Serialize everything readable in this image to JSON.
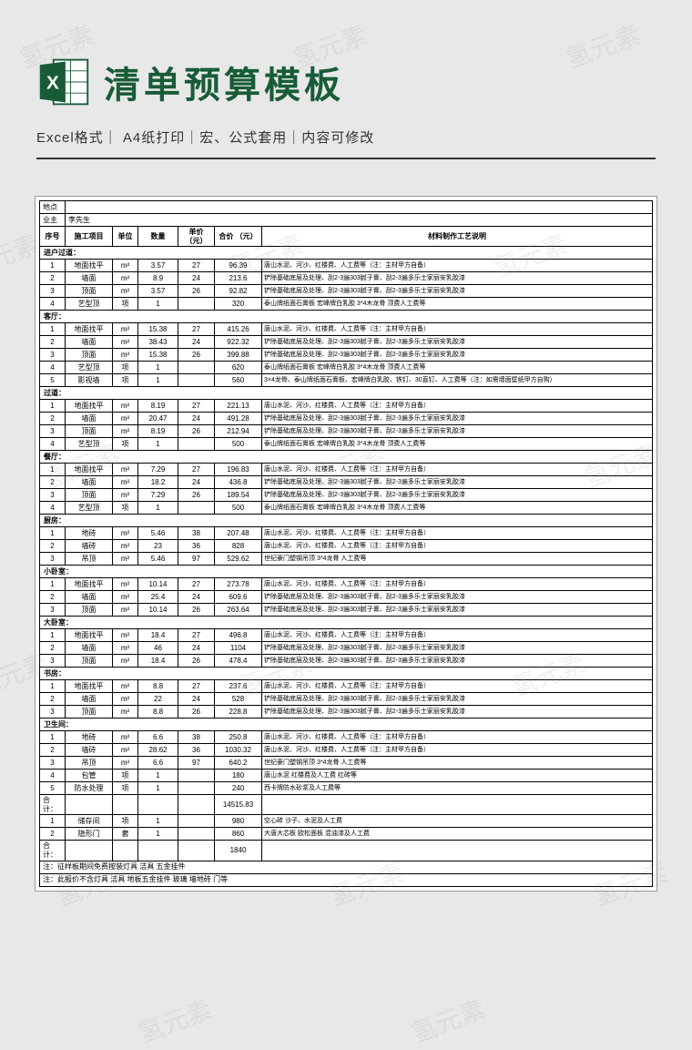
{
  "header": {
    "title": "清单预算模板",
    "subtitle": "Excel格式｜ A4纸打印｜宏、公式套用｜内容可修改"
  },
  "meta": {
    "location_label": "地点",
    "owner_label": "业主",
    "owner_value": "李先生"
  },
  "columns": {
    "seq": "序号",
    "item": "施工项目",
    "unit": "单位",
    "qty": "数量",
    "price": "单价\n（元）",
    "total": "合价\n（元）",
    "desc": "材料制作工艺说明"
  },
  "desc_text": {
    "floor": "唐山水泥、河沙、红楼费、人工费等（注：主材甲方自备）",
    "wall": "铲除基础底层及处理、刮2-3遍303腻子膏、刮2-3遍多乐士家丽安乳胶漆",
    "ceil": "铲除基础底层及处理、刮2-3遍303腻子膏、刮2-3遍多乐士家丽安乳胶漆",
    "art": "泰山牌纸面石膏板 宏峰牌白乳胶 3*4木龙骨 顶费人工费等",
    "tvwall": "3×4龙骨、泰山牌纸面石膏板、宏峰牌白乳胶、铁钉、30直钉、人工费等（注：如需墙面壁纸甲方自购）",
    "tile": "唐山水泥、河沙、红楼费、人工费等（注：主材甲方自备）",
    "susp": "世纪豪门塑钢吊顶 3*4龙骨 人工费等",
    "pipe": "唐山水泥 红楼费及人工费 红砖等",
    "water": "西卡牌防水砂浆及人工费等",
    "store": "空心砖 沙子、水泥及人工费",
    "door": "大唐大芯板 欧松面板 混油漆及人工费"
  },
  "sections": [
    {
      "name": "进户过道：",
      "rows": [
        {
          "n": 1,
          "i": "地面找平",
          "u": "m²",
          "q": "3.57",
          "p": "27",
          "t": "96.39",
          "d": "floor"
        },
        {
          "n": 2,
          "i": "墙面",
          "u": "m²",
          "q": "8.9",
          "p": "24",
          "t": "213.6",
          "d": "wall"
        },
        {
          "n": 3,
          "i": "顶面",
          "u": "m²",
          "q": "3.57",
          "p": "26",
          "t": "92.82",
          "d": "ceil"
        },
        {
          "n": 4,
          "i": "艺型顶",
          "u": "项",
          "q": "1",
          "p": "",
          "t": "320",
          "d": "art"
        }
      ]
    },
    {
      "name": "客厅：",
      "rows": [
        {
          "n": 1,
          "i": "地面找平",
          "u": "m²",
          "q": "15.38",
          "p": "27",
          "t": "415.26",
          "d": "floor"
        },
        {
          "n": 2,
          "i": "墙面",
          "u": "m²",
          "q": "38.43",
          "p": "24",
          "t": "922.32",
          "d": "wall"
        },
        {
          "n": 3,
          "i": "顶面",
          "u": "m²",
          "q": "15.38",
          "p": "26",
          "t": "399.88",
          "d": "ceil"
        },
        {
          "n": 4,
          "i": "艺型顶",
          "u": "项",
          "q": "1",
          "p": "",
          "t": "620",
          "d": "art"
        },
        {
          "n": 5,
          "i": "影视墙",
          "u": "项",
          "q": "1",
          "p": "",
          "t": "560",
          "d": "tvwall"
        }
      ]
    },
    {
      "name": "过道：",
      "rows": [
        {
          "n": 1,
          "i": "地面找平",
          "u": "m²",
          "q": "8.19",
          "p": "27",
          "t": "221.13",
          "d": "floor"
        },
        {
          "n": 2,
          "i": "墙面",
          "u": "m²",
          "q": "20.47",
          "p": "24",
          "t": "491.28",
          "d": "wall"
        },
        {
          "n": 3,
          "i": "顶面",
          "u": "m²",
          "q": "8.19",
          "p": "26",
          "t": "212.94",
          "d": "ceil"
        },
        {
          "n": 4,
          "i": "艺型顶",
          "u": "项",
          "q": "1",
          "p": "",
          "t": "500",
          "d": "art"
        }
      ]
    },
    {
      "name": "餐厅：",
      "rows": [
        {
          "n": 1,
          "i": "地面找平",
          "u": "m²",
          "q": "7.29",
          "p": "27",
          "t": "196.83",
          "d": "floor"
        },
        {
          "n": 2,
          "i": "墙面",
          "u": "m²",
          "q": "18.2",
          "p": "24",
          "t": "436.8",
          "d": "wall"
        },
        {
          "n": 3,
          "i": "顶面",
          "u": "m²",
          "q": "7.29",
          "p": "26",
          "t": "189.54",
          "d": "ceil"
        },
        {
          "n": 4,
          "i": "艺型顶",
          "u": "项",
          "q": "1",
          "p": "",
          "t": "500",
          "d": "art"
        }
      ]
    },
    {
      "name": "厨房：",
      "rows": [
        {
          "n": 1,
          "i": "地砖",
          "u": "m²",
          "q": "5.46",
          "p": "38",
          "t": "207.48",
          "d": "tile"
        },
        {
          "n": 2,
          "i": "墙砖",
          "u": "m²",
          "q": "23",
          "p": "36",
          "t": "828",
          "d": "tile"
        },
        {
          "n": 3,
          "i": "吊顶",
          "u": "m²",
          "q": "5.46",
          "p": "97",
          "t": "529.62",
          "d": "susp"
        }
      ]
    },
    {
      "name": "小卧室：",
      "rows": [
        {
          "n": 1,
          "i": "地面找平",
          "u": "m²",
          "q": "10.14",
          "p": "27",
          "t": "273.78",
          "d": "floor"
        },
        {
          "n": 2,
          "i": "墙面",
          "u": "m²",
          "q": "25.4",
          "p": "24",
          "t": "609.6",
          "d": "wall"
        },
        {
          "n": 3,
          "i": "顶面",
          "u": "m²",
          "q": "10.14",
          "p": "26",
          "t": "263.64",
          "d": "ceil"
        }
      ]
    },
    {
      "name": "大卧室：",
      "rows": [
        {
          "n": 1,
          "i": "地面找平",
          "u": "m²",
          "q": "18.4",
          "p": "27",
          "t": "496.8",
          "d": "floor"
        },
        {
          "n": 2,
          "i": "墙面",
          "u": "m²",
          "q": "46",
          "p": "24",
          "t": "1104",
          "d": "wall"
        },
        {
          "n": 3,
          "i": "顶面",
          "u": "m²",
          "q": "18.4",
          "p": "26",
          "t": "478.4",
          "d": "ceil"
        }
      ]
    },
    {
      "name": "书房：",
      "rows": [
        {
          "n": 1,
          "i": "地面找平",
          "u": "m²",
          "q": "8.8",
          "p": "27",
          "t": "237.6",
          "d": "floor"
        },
        {
          "n": 2,
          "i": "墙面",
          "u": "m²",
          "q": "22",
          "p": "24",
          "t": "528",
          "d": "wall"
        },
        {
          "n": 3,
          "i": "顶面",
          "u": "m²",
          "q": "8.8",
          "p": "26",
          "t": "228.8",
          "d": "ceil"
        }
      ]
    },
    {
      "name": "卫生间：",
      "rows": [
        {
          "n": 1,
          "i": "地砖",
          "u": "m²",
          "q": "6.6",
          "p": "38",
          "t": "250.8",
          "d": "tile"
        },
        {
          "n": 2,
          "i": "墙砖",
          "u": "m²",
          "q": "28.62",
          "p": "36",
          "t": "1030.32",
          "d": "tile"
        },
        {
          "n": 3,
          "i": "吊顶",
          "u": "m²",
          "q": "6.6",
          "p": "97",
          "t": "640.2",
          "d": "susp"
        },
        {
          "n": 4,
          "i": "包管",
          "u": "项",
          "q": "1",
          "p": "",
          "t": "180",
          "d": "pipe"
        },
        {
          "n": 5,
          "i": "防水处理",
          "u": "项",
          "q": "1",
          "p": "",
          "t": "240",
          "d": "water"
        }
      ]
    }
  ],
  "subtotal1": {
    "label": "合计：",
    "value": "14515.83"
  },
  "extra_rows": [
    {
      "n": 1,
      "i": "储存间",
      "u": "项",
      "q": "1",
      "p": "",
      "t": "980",
      "d": "store"
    },
    {
      "n": 2,
      "i": "隐形门",
      "u": "套",
      "q": "1",
      "p": "",
      "t": "860",
      "d": "door"
    }
  ],
  "subtotal2": {
    "label": "合计：",
    "value": "1840"
  },
  "notes": [
    "注：征样板期间免费按装灯具 洁具 五金挂件",
    "注：此报价不含灯具 洁具 地板五金挂件 玻璃 墙地砖 门等"
  ],
  "watermark_text": "氢元素"
}
